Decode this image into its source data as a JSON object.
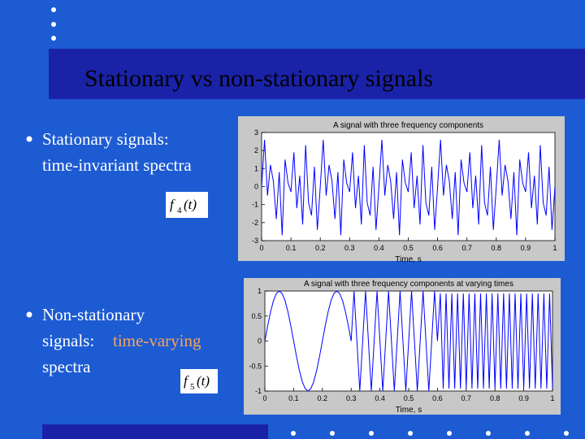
{
  "title": "Stationary vs non-stationary signals",
  "bullets": [
    {
      "lines": [
        "Stationary signals:",
        "time-invariant spectra"
      ]
    },
    {
      "lines": [
        "Non-stationary",
        "signals:",
        "time-varying",
        "spectra"
      ]
    }
  ],
  "formulas": [
    {
      "symbol": "f",
      "index": "4",
      "argument": "(t)"
    },
    {
      "symbol": "f",
      "index": "5",
      "argument": "(t)"
    }
  ],
  "chart_data": [
    {
      "type": "line",
      "title": "A signal with three frequency components",
      "xlabel": "Time, s",
      "color": "#0000ff",
      "xlim": [
        0,
        1
      ],
      "xticks": [
        0,
        0.1,
        0.2,
        0.3,
        0.4,
        0.5,
        0.6,
        0.7,
        0.8,
        0.9,
        1
      ],
      "ylim": [
        -3,
        3
      ],
      "yticks": [
        -3,
        -2,
        -1,
        0,
        1,
        2,
        3
      ],
      "x": [
        0,
        0.01,
        0.02,
        0.03,
        0.04,
        0.05,
        0.06,
        0.07,
        0.08,
        0.09,
        0.1,
        0.11,
        0.12,
        0.13,
        0.14,
        0.15,
        0.16,
        0.17,
        0.18,
        0.19,
        0.2,
        0.21,
        0.22,
        0.23,
        0.24,
        0.25,
        0.26,
        0.27,
        0.28,
        0.29,
        0.3,
        0.31,
        0.32,
        0.33,
        0.34,
        0.35,
        0.36,
        0.37,
        0.38,
        0.39,
        0.4,
        0.41,
        0.42,
        0.43,
        0.44,
        0.45,
        0.46,
        0.47,
        0.48,
        0.49,
        0.5,
        0.51,
        0.52,
        0.53,
        0.54,
        0.55,
        0.56,
        0.57,
        0.58,
        0.59,
        0.6,
        0.61,
        0.62,
        0.63,
        0.64,
        0.65,
        0.66,
        0.67,
        0.68,
        0.69,
        0.7,
        0.71,
        0.72,
        0.73,
        0.74,
        0.75,
        0.76,
        0.77,
        0.78,
        0.79,
        0.8,
        0.81,
        0.82,
        0.83,
        0.84,
        0.85,
        0.86,
        0.87,
        0.88,
        0.89,
        0.9,
        0.91,
        0.92,
        0.93,
        0.94,
        0.95,
        0.96,
        0.97,
        0.98,
        0.99,
        1
      ],
      "values": [
        0,
        2.6,
        -0.5,
        1.2,
        0.3,
        -1.8,
        0.8,
        -2.7,
        1.5,
        0.2,
        -0.3,
        1.9,
        -1.2,
        0.6,
        -2.1,
        2.3,
        -0.9,
        -1.6,
        1.1,
        -2.4,
        0,
        2.6,
        -0.5,
        1.2,
        0.3,
        -1.8,
        0.8,
        -2.7,
        1.5,
        0.2,
        -0.3,
        1.9,
        -1.2,
        0.6,
        -2.1,
        2.3,
        -0.9,
        -1.6,
        1.1,
        -2.4,
        0,
        2.6,
        -0.5,
        1.2,
        0.3,
        -1.8,
        0.8,
        -2.7,
        1.5,
        0.2,
        -0.3,
        1.9,
        -1.2,
        0.6,
        -2.1,
        2.3,
        -0.9,
        -1.6,
        1.1,
        -2.4,
        0,
        2.6,
        -0.5,
        1.2,
        0.3,
        -1.8,
        0.8,
        -2.7,
        1.5,
        0.2,
        -0.3,
        1.9,
        -1.2,
        0.6,
        -2.1,
        2.3,
        -0.9,
        -1.6,
        1.1,
        -2.4,
        0,
        2.6,
        -0.5,
        1.2,
        0.3,
        -1.8,
        0.8,
        -2.7,
        1.5,
        0.2,
        -0.3,
        1.9,
        -1.2,
        0.6,
        -2.1,
        2.3,
        -0.9,
        -1.6,
        1.1,
        -2.4,
        0
      ]
    },
    {
      "type": "line",
      "title": "A signal with three frequency components at varying times",
      "xlabel": "Time, s",
      "color": "#0000ff",
      "xlim": [
        0,
        1
      ],
      "xticks": [
        0,
        0.1,
        0.2,
        0.3,
        0.4,
        0.5,
        0.6,
        0.7,
        0.8,
        0.9,
        1
      ],
      "ylim": [
        -1,
        1
      ],
      "yticks": [
        -1,
        -0.5,
        0,
        0.5,
        1
      ],
      "x": [
        0,
        0.01,
        0.02,
        0.03,
        0.04,
        0.05,
        0.06,
        0.07,
        0.08,
        0.09,
        0.1,
        0.11,
        0.12,
        0.13,
        0.14,
        0.15,
        0.16,
        0.17,
        0.18,
        0.19,
        0.2,
        0.21,
        0.22,
        0.23,
        0.24,
        0.25,
        0.26,
        0.27,
        0.28,
        0.29,
        0.3,
        0.31,
        0.32,
        0.33,
        0.34,
        0.35,
        0.36,
        0.37,
        0.38,
        0.39,
        0.4,
        0.41,
        0.42,
        0.43,
        0.44,
        0.45,
        0.46,
        0.47,
        0.48,
        0.49,
        0.5,
        0.51,
        0.52,
        0.53,
        0.54,
        0.55,
        0.56,
        0.57,
        0.58,
        0.59,
        0.6,
        0.61,
        0.62,
        0.63,
        0.64,
        0.65,
        0.66,
        0.67,
        0.68,
        0.69,
        0.7,
        0.71,
        0.72,
        0.73,
        0.74,
        0.75,
        0.76,
        0.77,
        0.78,
        0.79,
        0.8,
        0.81,
        0.82,
        0.83,
        0.84,
        0.85,
        0.86,
        0.87,
        0.88,
        0.89,
        0.9,
        0.91,
        0.92,
        0.93,
        0.94,
        0.95,
        0.96,
        0.97,
        0.98,
        0.99,
        1
      ],
      "values": [
        0,
        0.31,
        0.59,
        0.81,
        0.95,
        1,
        0.95,
        0.81,
        0.59,
        0.31,
        0,
        -0.31,
        -0.59,
        -0.81,
        -0.95,
        -1,
        -0.95,
        -0.81,
        -0.59,
        -0.31,
        0,
        0.31,
        0.59,
        0.81,
        0.95,
        1,
        0.95,
        0.81,
        0.59,
        0.31,
        0,
        1,
        0,
        -1,
        0,
        1,
        0,
        -1,
        0,
        1,
        0,
        -1,
        0,
        1,
        0,
        -1,
        0,
        1,
        0,
        -1,
        0,
        1,
        0,
        -1,
        0,
        1,
        0,
        -1,
        0,
        1,
        0,
        0.95,
        -0.95,
        0.95,
        -0.95,
        0.95,
        -0.95,
        0.95,
        -0.95,
        0.95,
        -0.95,
        0.95,
        -0.95,
        0.95,
        -0.95,
        0.95,
        -0.95,
        0.95,
        -0.95,
        0.95,
        -0.95,
        0.95,
        -0.95,
        0.95,
        -0.95,
        0.95,
        -0.95,
        0.95,
        -0.95,
        0.95,
        -0.95,
        0.95,
        -0.95,
        0.95,
        -0.95,
        0.95,
        -0.95,
        0.95,
        -0.95,
        0.95,
        -0.95
      ]
    }
  ]
}
